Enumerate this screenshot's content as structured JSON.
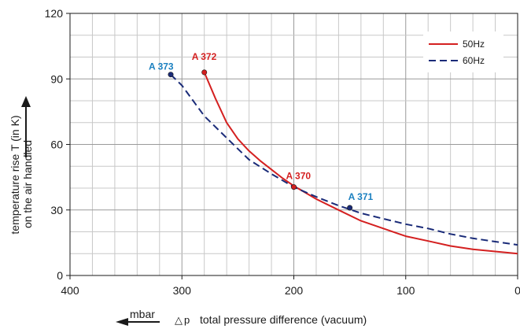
{
  "chart_data": {
    "type": "line",
    "xlabel_prefix": "△p",
    "xlabel": "total pressure difference (vacuum)",
    "xunit": "mbar",
    "ylabel_line1": "temperature rise T (in K)",
    "ylabel_line2": "on the air handled",
    "xlim": [
      400,
      0
    ],
    "ylim": [
      0,
      120
    ],
    "x_ticks": [
      400,
      300,
      200,
      100,
      0
    ],
    "x_tick_labels": [
      "400",
      "300",
      "200",
      "100",
      "0"
    ],
    "y_ticks": [
      0,
      30,
      60,
      90,
      120
    ],
    "y_tick_labels": [
      "0",
      "30",
      "60",
      "90",
      "120"
    ],
    "grid": true,
    "legend_position": "top-right",
    "series": [
      {
        "name": "50Hz",
        "color": "#d42020",
        "style": "solid",
        "x": [
          280,
          270,
          260,
          250,
          240,
          230,
          220,
          210,
          200,
          180,
          160,
          140,
          120,
          100,
          80,
          60,
          40,
          20,
          0
        ],
        "y": [
          93,
          81,
          70,
          62.5,
          57,
          52.5,
          48.5,
          44.5,
          41,
          35,
          30,
          25,
          21.5,
          18,
          15.8,
          13.5,
          12,
          11,
          10
        ]
      },
      {
        "name": "60Hz",
        "color": "#1a2b78",
        "style": "dashed",
        "x": [
          310,
          300,
          280,
          260,
          240,
          220,
          200,
          180,
          160,
          140,
          120,
          100,
          80,
          60,
          40,
          20,
          0
        ],
        "y": [
          92,
          87,
          73,
          63,
          53,
          46.5,
          40.5,
          36,
          32,
          28.5,
          26,
          23.5,
          21.5,
          19,
          17,
          15.5,
          14
        ]
      }
    ],
    "annotations": [
      {
        "label": "A 373",
        "x": 310,
        "y": 92,
        "color": "#1b80c0",
        "marker_color": "#1a2b78"
      },
      {
        "label": "A 372",
        "x": 280,
        "y": 93,
        "color": "#d42020",
        "marker_color": "#d42020"
      },
      {
        "label": "A 370",
        "x": 200,
        "y": 40.5,
        "color": "#d42020",
        "marker_color": "#d42020"
      },
      {
        "label": "A 371",
        "x": 150,
        "y": 31,
        "color": "#1b80c0",
        "marker_color": "#1a2b78"
      }
    ]
  }
}
